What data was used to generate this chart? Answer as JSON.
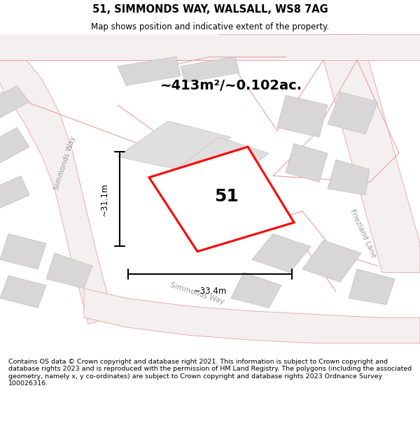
{
  "title": "51, SIMMONDS WAY, WALSALL, WS8 7AG",
  "subtitle": "Map shows position and indicative extent of the property.",
  "footer": "Contains OS data © Crown copyright and database right 2021. This information is subject to Crown copyright and database rights 2023 and is reproduced with the permission of HM Land Registry. The polygons (including the associated geometry, namely x, y co-ordinates) are subject to Crown copyright and database rights 2023 Ordnance Survey 100026316.",
  "area_label": "~413m²/~0.102ac.",
  "plot_number": "51",
  "dim_width": "~33.4m",
  "dim_height": "~31.1m",
  "road_label_left": "Simmonds Way",
  "road_label_bottom": "Simmonds Way",
  "road_label_right": "Friezland Lane",
  "bg_color": "#ffffff",
  "map_bg": "#ffffff",
  "block_color": "#d8d6d6",
  "road_line_color": "#f0b0b0",
  "road_outline_color": "#e8a0a0",
  "highlight_color": "#ff0000"
}
